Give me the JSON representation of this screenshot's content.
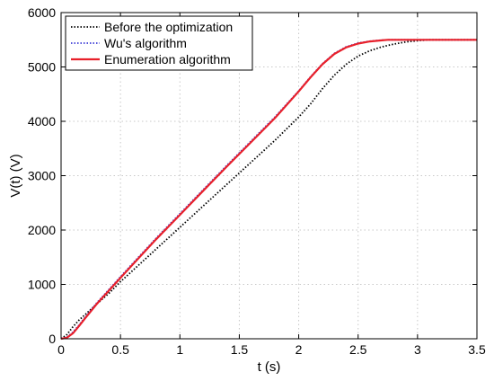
{
  "chart_data": {
    "type": "line",
    "xlabel": "t (s)",
    "ylabel": "V(t) (V)",
    "xlim": [
      0,
      3.5
    ],
    "ylim": [
      0,
      6000
    ],
    "xticks": [
      "0",
      "0.5",
      "1",
      "1.5",
      "2",
      "2.5",
      "3",
      "3.5"
    ],
    "yticks": [
      "0",
      "1000",
      "2000",
      "3000",
      "4000",
      "5000",
      "6000"
    ],
    "grid": true,
    "legend_position": "top-left",
    "series": [
      {
        "name": "Before the optimization",
        "color": "#000000",
        "style": "dotted",
        "x": [
          0,
          0.05,
          0.1,
          0.15,
          0.2,
          0.3,
          0.4,
          0.5,
          0.6,
          0.8,
          1.0,
          1.2,
          1.4,
          1.6,
          1.8,
          2.0,
          2.1,
          2.2,
          2.3,
          2.4,
          2.5,
          2.6,
          2.7,
          2.8,
          2.9,
          3.0,
          3.1,
          3.5
        ],
        "y": [
          0,
          80,
          220,
          340,
          440,
          640,
          830,
          1050,
          1250,
          1650,
          2050,
          2450,
          2850,
          3250,
          3650,
          4080,
          4320,
          4600,
          4850,
          5050,
          5200,
          5300,
          5370,
          5420,
          5460,
          5485,
          5500,
          5500
        ]
      },
      {
        "name": "Wu's algorithm",
        "color": "#3b3bd6",
        "style": "dotted",
        "x": [
          0,
          0.05,
          0.1,
          0.15,
          0.2,
          0.3,
          0.4,
          0.5,
          0.6,
          0.8,
          1.0,
          1.2,
          1.4,
          1.6,
          1.8,
          2.0,
          2.1,
          2.2,
          2.3,
          2.4,
          2.5,
          2.6,
          2.7,
          2.75,
          3.0,
          3.5
        ],
        "y": [
          0,
          30,
          120,
          250,
          390,
          660,
          900,
          1140,
          1380,
          1850,
          2300,
          2750,
          3200,
          3640,
          4080,
          4560,
          4820,
          5060,
          5250,
          5370,
          5440,
          5475,
          5495,
          5500,
          5500,
          5500
        ]
      },
      {
        "name": "Enumeration algorithm",
        "color": "#e8202a",
        "style": "solid",
        "x": [
          0,
          0.05,
          0.1,
          0.15,
          0.2,
          0.3,
          0.4,
          0.5,
          0.6,
          0.8,
          1.0,
          1.2,
          1.4,
          1.6,
          1.8,
          2.0,
          2.1,
          2.2,
          2.3,
          2.4,
          2.5,
          2.6,
          2.7,
          2.75,
          3.0,
          3.5
        ],
        "y": [
          0,
          20,
          100,
          230,
          370,
          640,
          880,
          1120,
          1360,
          1830,
          2280,
          2730,
          3180,
          3620,
          4060,
          4550,
          4810,
          5050,
          5240,
          5360,
          5430,
          5470,
          5490,
          5500,
          5500,
          5500
        ]
      }
    ]
  }
}
